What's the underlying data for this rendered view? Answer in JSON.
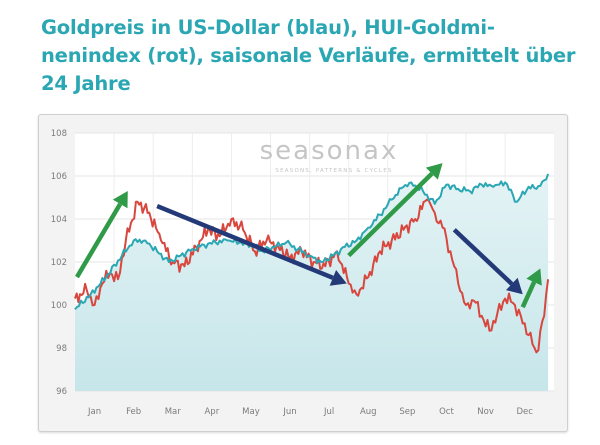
{
  "title": "Goldpreis in US-Dollar (blau), HUI-Goldmi-nenindex (rot), saisonale Verläufe, ermittelt über 24 Jahre",
  "title_lines": [
    "Goldpreis in US-Dollar (blau), HUI-Goldmi-",
    "nenindex (rot), saisonale Verläufe, ermittelt über",
    "24 Jahre"
  ],
  "watermark": {
    "brand": "seasonax",
    "tagline": "SEASONS, PATTERNS & CYCLES"
  },
  "colors": {
    "gold_line": "#2ba7b4",
    "hui_line": "#d8473e",
    "area_fill": "#d3edf0",
    "arrow_up": "#2f9a47",
    "arrow_down": "#243a78",
    "title": "#2ba7b4"
  },
  "chart_data": {
    "type": "line",
    "title": "Goldpreis in US-Dollar (blau), HUI-Goldminenindex (rot), saisonale Verläufe, ermittelt über 24 Jahre",
    "xlabel": "",
    "ylabel": "",
    "x_tick_labels": [
      "Jan",
      "Feb",
      "Mar",
      "Apr",
      "May",
      "Jun",
      "Jul",
      "Aug",
      "Sep",
      "Oct",
      "Nov",
      "Dec"
    ],
    "y_ticks": [
      96,
      98,
      100,
      102,
      104,
      106,
      108
    ],
    "xlim": [
      0,
      12.25
    ],
    "ylim": [
      96,
      108
    ],
    "grid": true,
    "series": [
      {
        "color": "#2ba7b4",
        "x": [
          0,
          0.4,
          0.8,
          1.2,
          1.5,
          1.8,
          2.1,
          2.4,
          2.7,
          3.0,
          3.3,
          3.6,
          3.9,
          4.2,
          4.5,
          4.8,
          5.1,
          5.4,
          5.7,
          6.0,
          6.3,
          6.6,
          6.9,
          7.2,
          7.5,
          7.8,
          8.1,
          8.4,
          8.6,
          8.9,
          9.2,
          9.5,
          9.8,
          10.1,
          10.4,
          10.7,
          11.0,
          11.3,
          11.6,
          11.8,
          12.0,
          12.1
        ],
        "y": [
          99.8,
          100.5,
          101.3,
          102.3,
          103.0,
          103.0,
          102.5,
          102.0,
          102.3,
          102.6,
          102.8,
          102.9,
          103.0,
          102.9,
          102.8,
          102.5,
          102.7,
          102.9,
          102.6,
          102.3,
          102.0,
          102.3,
          102.7,
          103.0,
          103.6,
          104.2,
          104.9,
          105.5,
          105.7,
          105.3,
          104.7,
          105.6,
          105.4,
          105.3,
          105.6,
          105.5,
          105.7,
          104.8,
          105.5,
          105.4,
          105.8,
          106.1
        ]
      },
      {
        "color": "#d8473e",
        "x": [
          0,
          0.3,
          0.5,
          0.7,
          0.9,
          1.1,
          1.3,
          1.6,
          1.9,
          2.2,
          2.5,
          2.8,
          3.1,
          3.4,
          3.7,
          4.0,
          4.3,
          4.6,
          4.9,
          5.2,
          5.5,
          5.8,
          6.1,
          6.4,
          6.7,
          7.0,
          7.2,
          7.5,
          7.8,
          8.1,
          8.4,
          8.7,
          9.0,
          9.2,
          9.4,
          9.6,
          9.8,
          10.0,
          10.2,
          10.4,
          10.6,
          10.8,
          11.0,
          11.2,
          11.4,
          11.6,
          11.8,
          12.0,
          12.1
        ],
        "y": [
          100.3,
          100.7,
          100.0,
          101.0,
          101.5,
          101.2,
          103.0,
          104.8,
          104.3,
          103.0,
          102.0,
          101.8,
          102.7,
          103.5,
          103.2,
          104.0,
          103.5,
          102.5,
          103.0,
          102.7,
          102.2,
          102.5,
          102.0,
          101.8,
          102.5,
          101.0,
          100.5,
          101.3,
          102.5,
          103.0,
          103.5,
          104.0,
          104.9,
          104.3,
          103.6,
          102.5,
          101.0,
          100.0,
          100.2,
          99.5,
          98.8,
          99.6,
          100.3,
          100.1,
          99.5,
          98.6,
          97.8,
          99.5,
          101.2
        ]
      }
    ],
    "annotations": [
      {
        "kind": "arrow",
        "color": "#2f9a47",
        "direction": "up",
        "from": [
          0.05,
          101.3
        ],
        "to": [
          1.35,
          105.3
        ]
      },
      {
        "kind": "arrow",
        "color": "#243a78",
        "direction": "down",
        "from": [
          2.1,
          104.6
        ],
        "to": [
          6.95,
          101.0
        ]
      },
      {
        "kind": "arrow",
        "color": "#2f9a47",
        "direction": "up",
        "from": [
          7.0,
          102.3
        ],
        "to": [
          9.4,
          106.6
        ]
      },
      {
        "kind": "arrow",
        "color": "#243a78",
        "direction": "down",
        "from": [
          9.7,
          103.5
        ],
        "to": [
          11.45,
          100.5
        ]
      },
      {
        "kind": "arrow",
        "color": "#2f9a47",
        "direction": "up",
        "from": [
          11.45,
          99.9
        ],
        "to": [
          11.9,
          101.7
        ]
      }
    ]
  }
}
